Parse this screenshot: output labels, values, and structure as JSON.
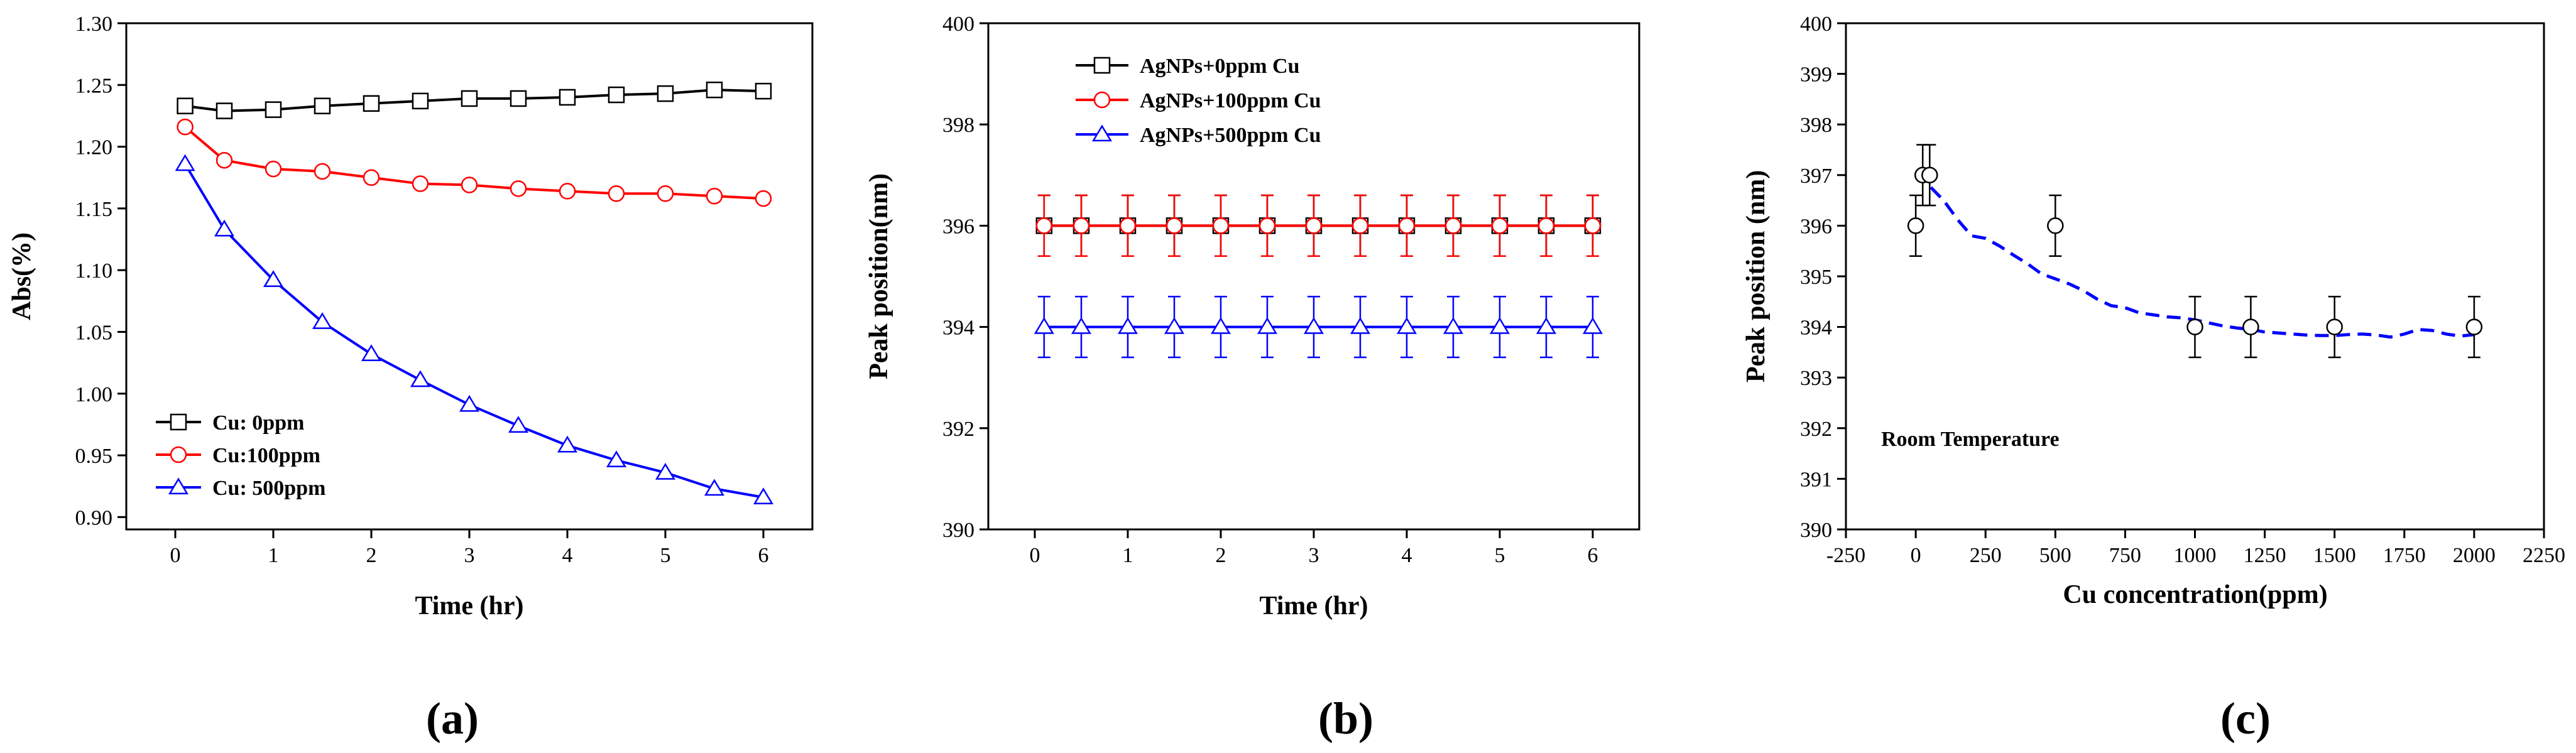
{
  "chart_data": [
    {
      "type": "line",
      "panel_label": "(a)",
      "xlabel": "Time (hr)",
      "ylabel": "Abs(%)",
      "xlim": [
        -0.5,
        6.5
      ],
      "ylim": [
        0.89,
        1.3
      ],
      "xticks": [
        0,
        1,
        2,
        3,
        4,
        5,
        6
      ],
      "xtick_labels": [
        "0",
        "1",
        "2",
        "3",
        "4",
        "5",
        "6"
      ],
      "yticks": [
        0.9,
        0.95,
        1.0,
        1.05,
        1.1,
        1.15,
        1.2,
        1.25,
        1.3
      ],
      "ytick_labels": [
        "0.90",
        "0.95",
        "1.00",
        "1.05",
        "1.10",
        "1.15",
        "1.20",
        "1.25",
        "1.30"
      ],
      "legend_position": "bottom-left",
      "x": [
        0.1,
        0.5,
        1,
        1.5,
        2,
        2.5,
        3,
        3.5,
        4,
        4.5,
        5,
        5.5,
        6
      ],
      "series": [
        {
          "name": "Cu: 0ppm",
          "color": "#000000",
          "marker": "square",
          "values": [
            1.233,
            1.229,
            1.23,
            1.233,
            1.235,
            1.237,
            1.239,
            1.239,
            1.24,
            1.242,
            1.243,
            1.246,
            1.245
          ]
        },
        {
          "name": "Cu:100ppm",
          "color": "#ff0000",
          "marker": "circle",
          "values": [
            1.216,
            1.189,
            1.182,
            1.18,
            1.175,
            1.17,
            1.169,
            1.166,
            1.164,
            1.162,
            1.162,
            1.16,
            1.158
          ]
        },
        {
          "name": "Cu: 500ppm",
          "color": "#0000ff",
          "marker": "triangle",
          "values": [
            1.186,
            1.133,
            1.092,
            1.058,
            1.032,
            1.011,
            0.991,
            0.974,
            0.958,
            0.946,
            0.936,
            0.923,
            0.916
          ]
        }
      ]
    },
    {
      "type": "line",
      "panel_label": "(b)",
      "xlabel": "Time (hr)",
      "ylabel": "Peak position(nm)",
      "xlim": [
        -0.5,
        6.5
      ],
      "ylim": [
        390,
        400
      ],
      "xticks": [
        0,
        1,
        2,
        3,
        4,
        5,
        6
      ],
      "xtick_labels": [
        "0",
        "1",
        "2",
        "3",
        "4",
        "5",
        "6"
      ],
      "yticks": [
        390,
        392,
        394,
        396,
        398,
        400
      ],
      "ytick_labels": [
        "390",
        "392",
        "394",
        "396",
        "398",
        "400"
      ],
      "legend_position": "top-center",
      "error": 0.6,
      "x": [
        0.1,
        0.5,
        1,
        1.5,
        2,
        2.5,
        3,
        3.5,
        4,
        4.5,
        5,
        5.5,
        6
      ],
      "series": [
        {
          "name": "AgNPs+0ppm Cu",
          "color": "#000000",
          "marker": "square",
          "draw_order": 1,
          "values": [
            396,
            396,
            396,
            396,
            396,
            396,
            396,
            396,
            396,
            396,
            396,
            396,
            396
          ]
        },
        {
          "name": "AgNPs+100ppm Cu",
          "color": "#ff0000",
          "marker": "circle",
          "draw_order": 2,
          "values": [
            396,
            396,
            396,
            396,
            396,
            396,
            396,
            396,
            396,
            396,
            396,
            396,
            396
          ]
        },
        {
          "name": "AgNPs+500ppm Cu",
          "color": "#0000ff",
          "marker": "triangle",
          "draw_order": 3,
          "values": [
            394,
            394,
            394,
            394,
            394,
            394,
            394,
            394,
            394,
            394,
            394,
            394,
            394
          ]
        }
      ]
    },
    {
      "type": "scatter",
      "panel_label": "(c)",
      "xlabel": "Cu concentration(ppm)",
      "ylabel": "Peak position (nm)",
      "xlim": [
        -250,
        2250
      ],
      "ylim": [
        390,
        400
      ],
      "xticks": [
        -250,
        0,
        250,
        500,
        750,
        1000,
        1250,
        1500,
        1750,
        2000,
        2250
      ],
      "xtick_labels": [
        "-250",
        "0",
        "250",
        "500",
        "750",
        "1000",
        "1250",
        "1500",
        "1750",
        "2000",
        "2250"
      ],
      "yticks": [
        390,
        391,
        392,
        393,
        394,
        395,
        396,
        397,
        398,
        399,
        400
      ],
      "ytick_labels": [
        "390",
        "391",
        "392",
        "393",
        "394",
        "395",
        "396",
        "397",
        "398",
        "399",
        "400"
      ],
      "annotation": "Room Temperature",
      "points": {
        "color": "#000000",
        "marker": "open-circle",
        "error": 0.6,
        "x": [
          0,
          25,
          50,
          500,
          1000,
          1200,
          1500,
          2000
        ],
        "y": [
          396,
          397,
          397,
          396,
          394,
          394,
          394,
          394
        ]
      },
      "fit": {
        "color": "#0000ff",
        "style": "dashed",
        "x": [
          0,
          25,
          50,
          100,
          150,
          200,
          250,
          300,
          350,
          400,
          450,
          500,
          550,
          600,
          650,
          700,
          750,
          800,
          850,
          900,
          950,
          1000,
          1050,
          1100,
          1150,
          1200,
          1250,
          1300,
          1350,
          1400,
          1450,
          1500,
          1550,
          1600,
          1650,
          1700,
          1750,
          1800,
          1850,
          1900,
          1950,
          2000
        ],
        "y": [
          397.05,
          396.95,
          396.78,
          396.5,
          396.12,
          395.8,
          395.75,
          395.6,
          395.42,
          395.25,
          395.05,
          394.95,
          394.85,
          394.72,
          394.55,
          394.42,
          394.38,
          394.28,
          394.24,
          394.2,
          394.18,
          394.14,
          394.08,
          394.02,
          393.98,
          393.95,
          393.9,
          393.88,
          393.86,
          393.84,
          393.83,
          393.83,
          393.85,
          393.86,
          393.84,
          393.8,
          393.86,
          393.95,
          393.93,
          393.86,
          393.82,
          393.85
        ]
      }
    }
  ]
}
